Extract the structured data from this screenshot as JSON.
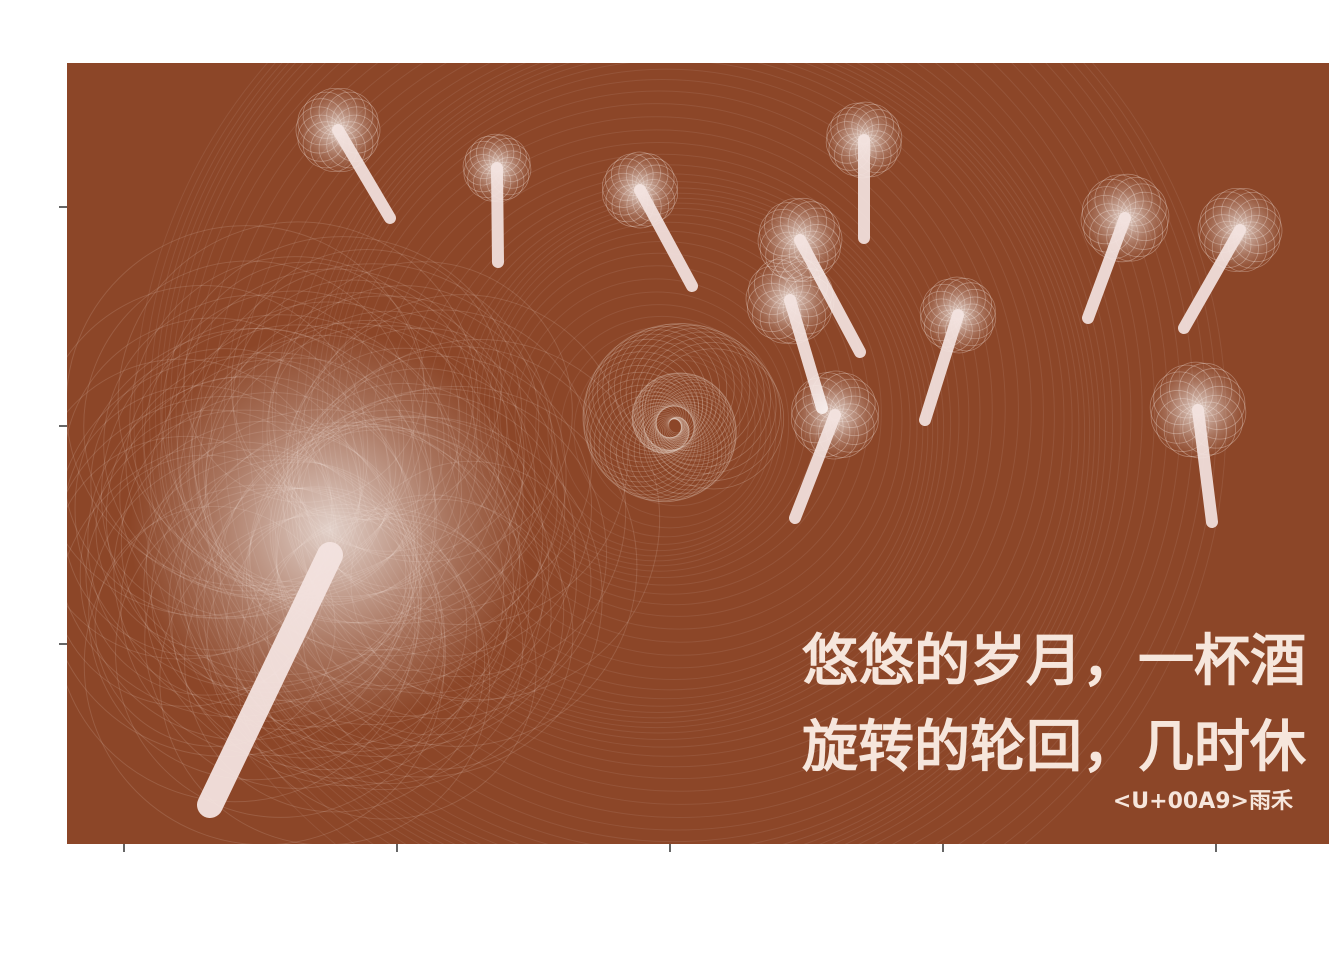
{
  "artwork": {
    "background_color": "#8c4628",
    "stroke_color": "#f7ebe5",
    "poem_lines": [
      "悠悠的岁月，一杯酒",
      "旋转的轮回，几时休"
    ],
    "signature": "<U+00A9>雨禾"
  }
}
